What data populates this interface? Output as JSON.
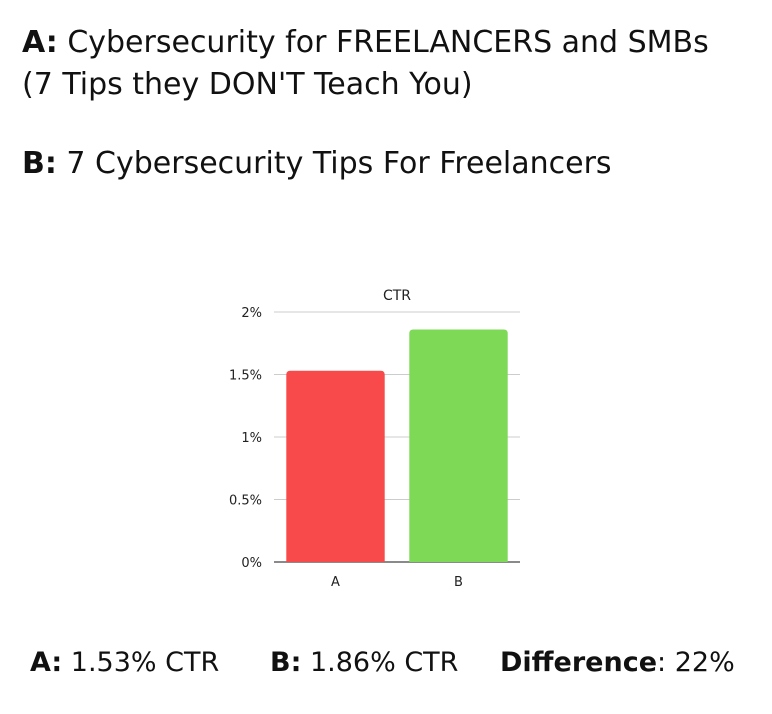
{
  "headlines": {
    "a_prefix": "A:",
    "a_line1": " Cybersecurity for FREELANCERS and SMBs",
    "a_line2": "(7 Tips they DON'T Teach You)",
    "b_prefix": "B:",
    "b_text": " 7 Cybersecurity Tips For Freelancers"
  },
  "chart_data": {
    "type": "bar",
    "title": "CTR",
    "categories": [
      "A",
      "B"
    ],
    "values": [
      1.53,
      1.86
    ],
    "unit": "%",
    "ylim": [
      0,
      2
    ],
    "yticks": [
      "0%",
      "0.5%",
      "1%",
      "1.5%",
      "2%"
    ],
    "ytick_values": [
      0,
      0.5,
      1,
      1.5,
      2
    ],
    "grid": true,
    "colors": [
      "#f84a4a",
      "#7ed957"
    ]
  },
  "stats": {
    "a_label": "A:",
    "a_value": " 1.53% CTR",
    "b_label": "B:",
    "b_value": " 1.86% CTR",
    "diff_label": "Difference",
    "diff_value": ": 22%"
  }
}
